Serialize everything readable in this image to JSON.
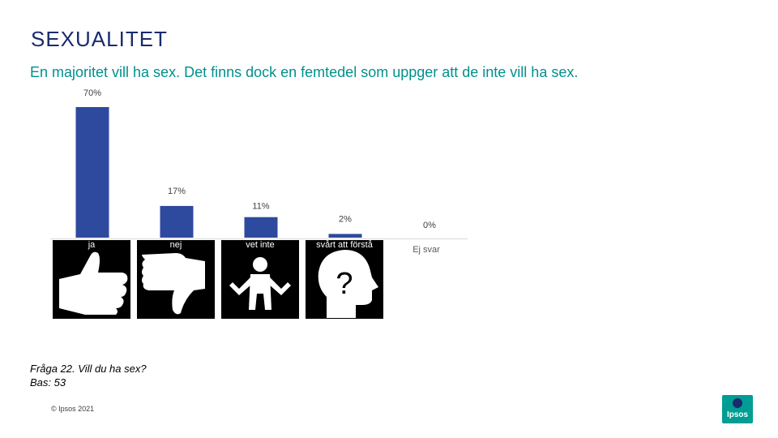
{
  "header": {
    "title": "SEXUALITET",
    "subtitle": "En majoritet vill ha sex. Det finns dock en femtedel som uppger att de inte vill ha sex."
  },
  "colors": {
    "bar": "#2e4a9e",
    "title": "#1a2b6d",
    "subtitle": "#00918d",
    "logo": "#009d94"
  },
  "chart_data": {
    "type": "bar",
    "categories": [
      "ja",
      "nej",
      "vet inte",
      "svårt att förstå",
      "Ej svar"
    ],
    "values": [
      70,
      17,
      11,
      2,
      0
    ],
    "data_labels": [
      "70%",
      "17%",
      "11%",
      "2%",
      "0%"
    ],
    "ylim": [
      0,
      70
    ],
    "grid": false,
    "legend": "none"
  },
  "icons": [
    "thumbs-up-icon",
    "thumbs-down-icon",
    "shrugging-person-icon",
    "question-head-icon"
  ],
  "footer": {
    "question": "Fråga 22. Vill du ha sex?",
    "base": "Bas: 53",
    "copyright": "© Ipsos 2021",
    "logo_text": "Ipsos"
  }
}
